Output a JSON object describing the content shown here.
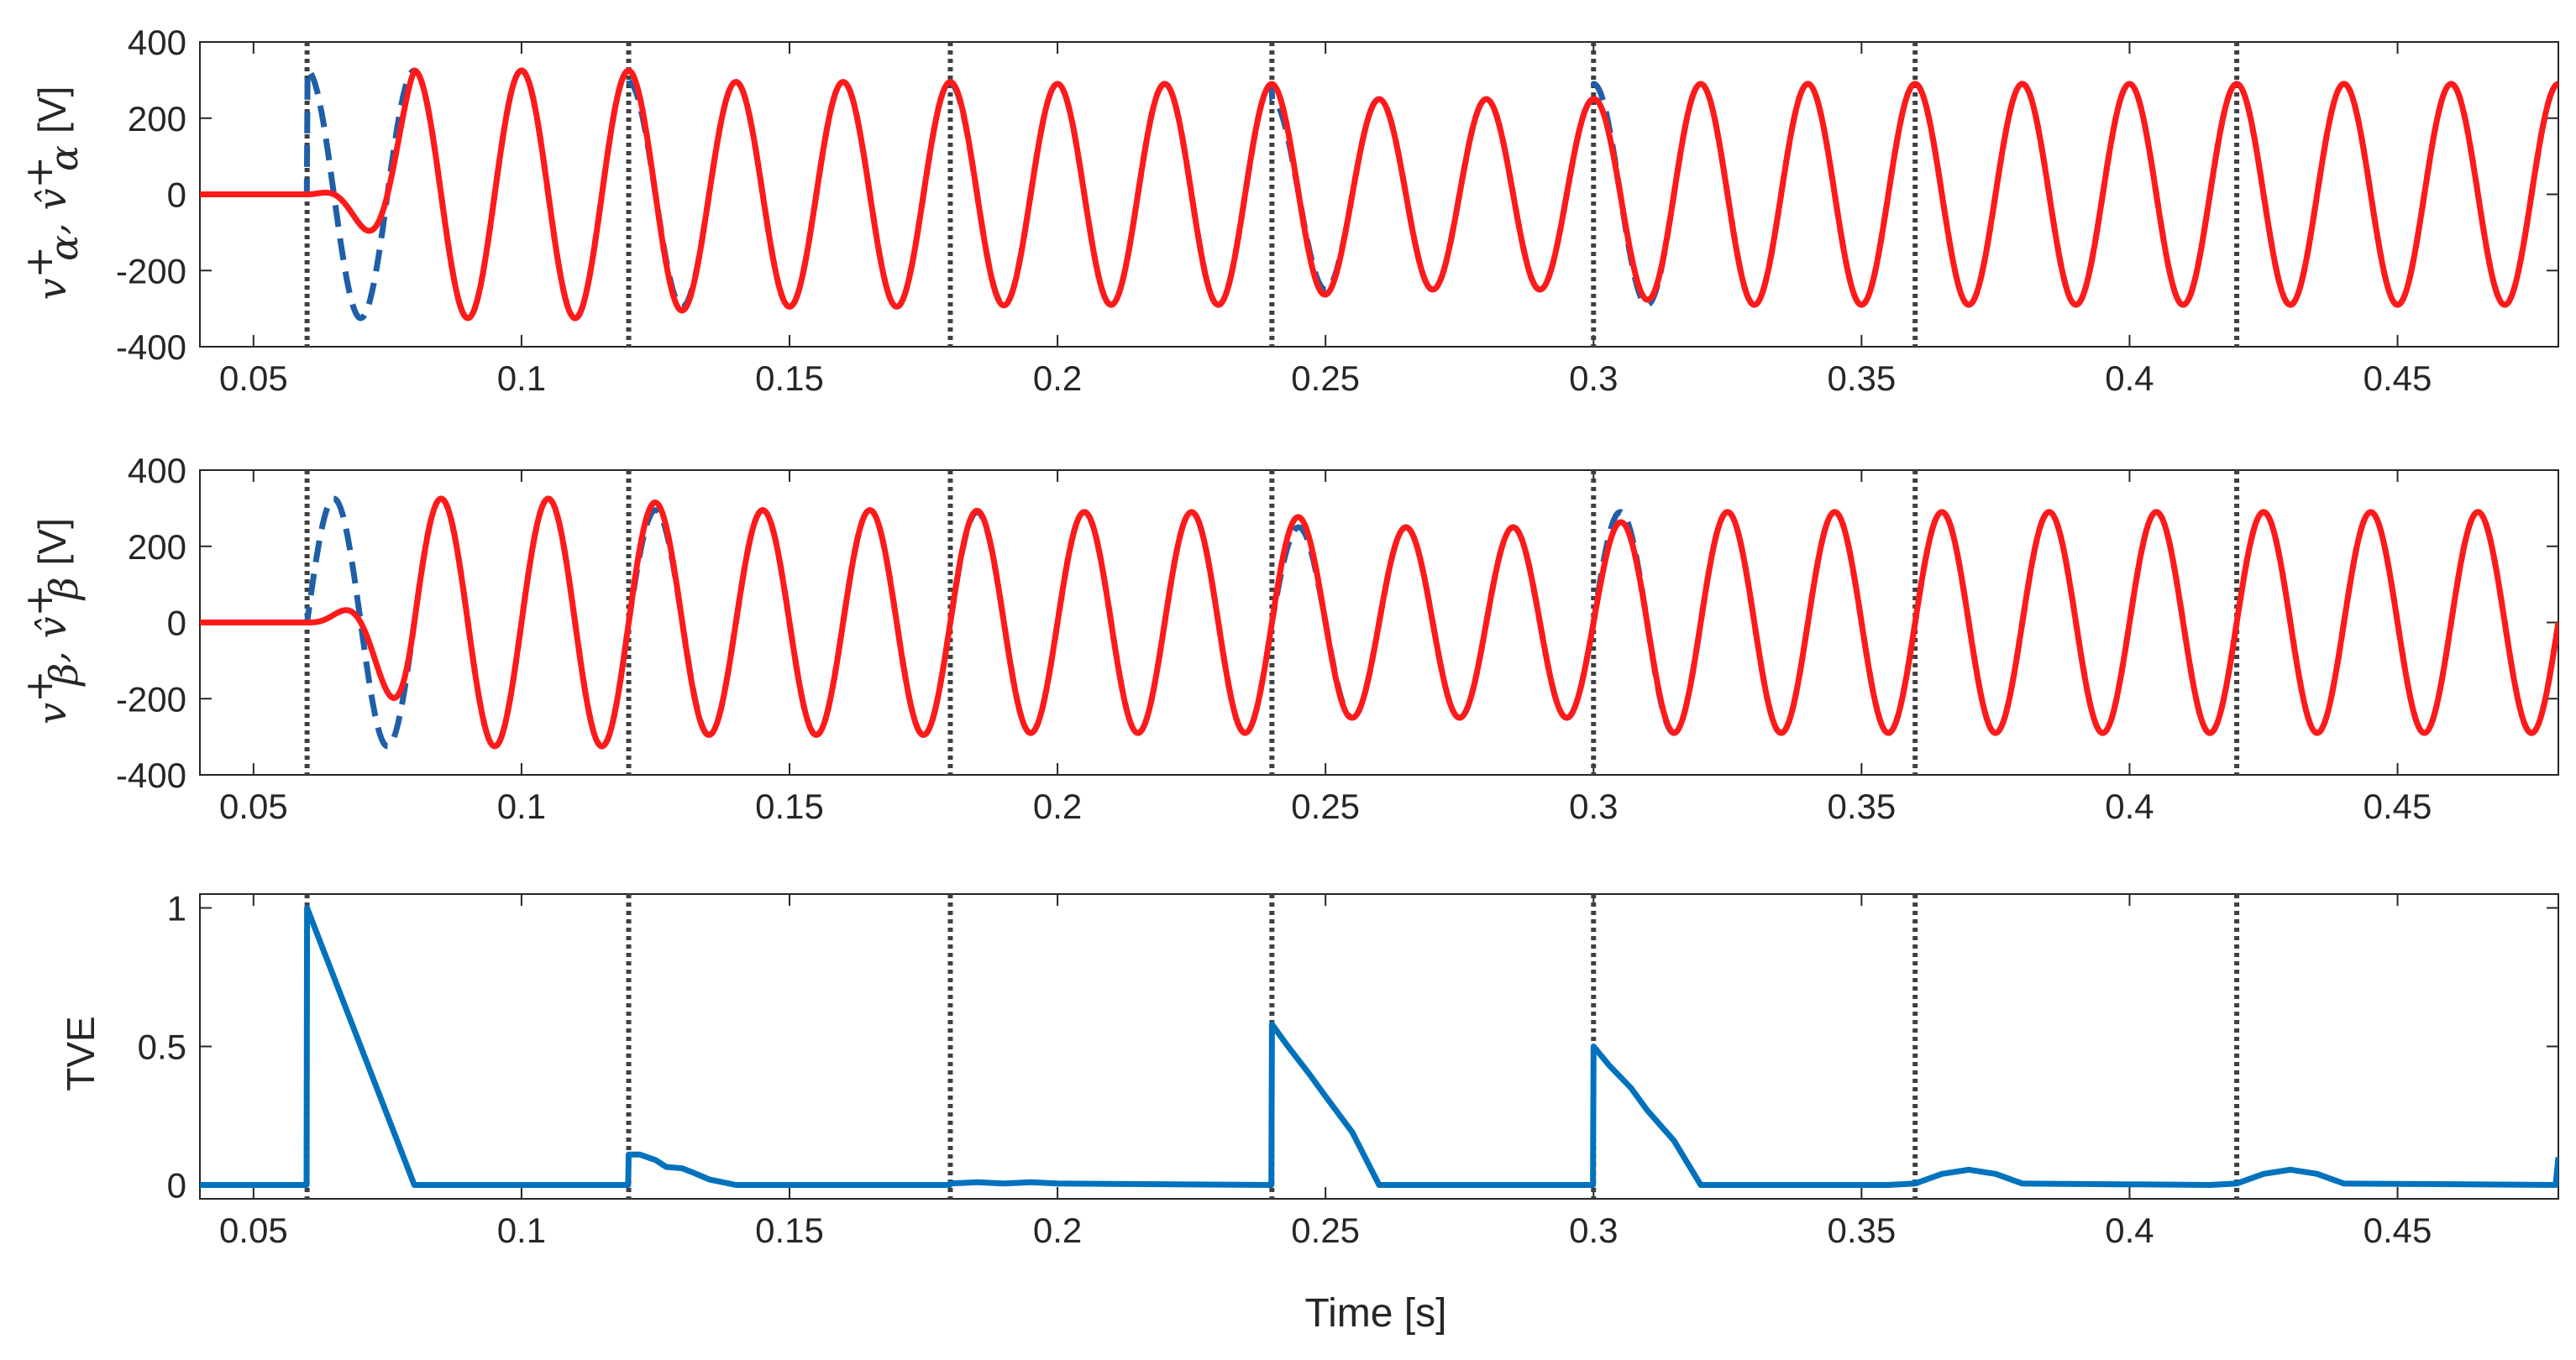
{
  "chart_data": [
    {
      "type": "line",
      "ylabel": "vα+, v̂α+ [V]",
      "ylabel_parts": {
        "v": "v",
        "plus": "+",
        "sub": "α",
        "sep": ", ",
        "vhat": "v̂",
        "unit": "[V]"
      },
      "xlim": [
        0.04,
        0.48
      ],
      "ylim": [
        -400,
        400
      ],
      "xticks": [
        0.05,
        0.1,
        0.15,
        0.2,
        0.25,
        0.3,
        0.35,
        0.4,
        0.45
      ],
      "xtick_labels": [
        "0.05",
        "0.1",
        "0.15",
        "0.2",
        "0.25",
        "0.3",
        "0.35",
        "0.4",
        "0.45"
      ],
      "yticks": [
        -400,
        -200,
        0,
        200,
        400
      ],
      "ytick_labels": [
        "-400",
        "-200",
        "0",
        "200",
        "400"
      ],
      "event_times": [
        0.06,
        0.12,
        0.18,
        0.24,
        0.3,
        0.36,
        0.42
      ],
      "segments": [
        {
          "t0": 0.06,
          "t1": 0.12,
          "amp": 325,
          "freq": 50
        },
        {
          "t0": 0.12,
          "t1": 0.18,
          "amp": 295,
          "freq": 50
        },
        {
          "t0": 0.18,
          "t1": 0.24,
          "amp": 290,
          "freq": 50
        },
        {
          "t0": 0.24,
          "t1": 0.3,
          "amp": 250,
          "freq": 50
        },
        {
          "t0": 0.3,
          "t1": 0.36,
          "amp": 290,
          "freq": 50
        },
        {
          "t0": 0.36,
          "t1": 0.42,
          "amp": 290,
          "freq": 50
        },
        {
          "t0": 0.42,
          "t1": 0.48,
          "amp": 290,
          "freq": 50
        }
      ],
      "series": [
        {
          "role": "measured",
          "color": "#1f5fa8",
          "style": "dashed",
          "phase": "cos"
        },
        {
          "role": "estimated",
          "color": "#ff1a1a",
          "style": "solid",
          "phase": "cos"
        }
      ],
      "grid": false
    },
    {
      "type": "line",
      "ylabel": "vβ+, v̂β+ [V]",
      "ylabel_parts": {
        "v": "v",
        "plus": "+",
        "sub": "β",
        "sep": ", ",
        "vhat": "v̂",
        "unit": "[V]"
      },
      "xlim": [
        0.04,
        0.48
      ],
      "ylim": [
        -400,
        400
      ],
      "xticks": [
        0.05,
        0.1,
        0.15,
        0.2,
        0.25,
        0.3,
        0.35,
        0.4,
        0.45
      ],
      "xtick_labels": [
        "0.05",
        "0.1",
        "0.15",
        "0.2",
        "0.25",
        "0.3",
        "0.35",
        "0.4",
        "0.45"
      ],
      "yticks": [
        -400,
        -200,
        0,
        200,
        400
      ],
      "ytick_labels": [
        "-400",
        "-200",
        "0",
        "200",
        "400"
      ],
      "event_times": [
        0.06,
        0.12,
        0.18,
        0.24,
        0.3,
        0.36,
        0.42
      ],
      "segments": [
        {
          "t0": 0.06,
          "t1": 0.12,
          "amp": 325,
          "freq": 50
        },
        {
          "t0": 0.12,
          "t1": 0.18,
          "amp": 295,
          "freq": 50
        },
        {
          "t0": 0.18,
          "t1": 0.24,
          "amp": 290,
          "freq": 50
        },
        {
          "t0": 0.24,
          "t1": 0.3,
          "amp": 250,
          "freq": 50
        },
        {
          "t0": 0.3,
          "t1": 0.36,
          "amp": 290,
          "freq": 50
        },
        {
          "t0": 0.36,
          "t1": 0.42,
          "amp": 290,
          "freq": 50
        },
        {
          "t0": 0.42,
          "t1": 0.48,
          "amp": 290,
          "freq": 50
        }
      ],
      "series": [
        {
          "role": "measured",
          "color": "#1f5fa8",
          "style": "dashed",
          "phase": "sin"
        },
        {
          "role": "estimated",
          "color": "#ff1a1a",
          "style": "solid",
          "phase": "sin"
        }
      ],
      "grid": false
    },
    {
      "type": "line",
      "ylabel": "TVE",
      "xlabel": "Time [s]",
      "xlim": [
        0.04,
        0.48
      ],
      "ylim": [
        -0.05,
        1.05
      ],
      "xticks": [
        0.05,
        0.1,
        0.15,
        0.2,
        0.25,
        0.3,
        0.35,
        0.4,
        0.45
      ],
      "xtick_labels": [
        "0.05",
        "0.1",
        "0.15",
        "0.2",
        "0.25",
        "0.3",
        "0.35",
        "0.4",
        "0.45"
      ],
      "yticks": [
        0,
        0.5,
        1
      ],
      "ytick_labels": [
        "0",
        "0.5",
        "1"
      ],
      "event_times": [
        0.06,
        0.12,
        0.18,
        0.24,
        0.3,
        0.36,
        0.42
      ],
      "series": [
        {
          "color": "#0072bd",
          "style": "solid",
          "x": [
            0.04,
            0.0599,
            0.06,
            0.08,
            0.1199,
            0.12,
            0.122,
            0.125,
            0.127,
            0.13,
            0.132,
            0.135,
            0.14,
            0.1799,
            0.18,
            0.185,
            0.19,
            0.195,
            0.2,
            0.2399,
            0.24,
            0.243,
            0.247,
            0.25,
            0.255,
            0.26,
            0.2999,
            0.3,
            0.303,
            0.307,
            0.31,
            0.315,
            0.32,
            0.355,
            0.36,
            0.365,
            0.37,
            0.375,
            0.38,
            0.415,
            0.42,
            0.425,
            0.43,
            0.435,
            0.44,
            0.4795,
            0.48
          ],
          "y": [
            0,
            0,
            1.0,
            0,
            0,
            0.11,
            0.11,
            0.09,
            0.065,
            0.06,
            0.045,
            0.02,
            0,
            0,
            0.005,
            0.01,
            0.005,
            0.01,
            0.005,
            0,
            0.58,
            0.5,
            0.4,
            0.32,
            0.19,
            0,
            0,
            0.5,
            0.43,
            0.35,
            0.27,
            0.16,
            0,
            0,
            0.005,
            0.04,
            0.055,
            0.04,
            0.005,
            0,
            0.005,
            0.04,
            0.055,
            0.04,
            0.005,
            0,
            0.1
          ]
        }
      ],
      "grid": false
    }
  ]
}
